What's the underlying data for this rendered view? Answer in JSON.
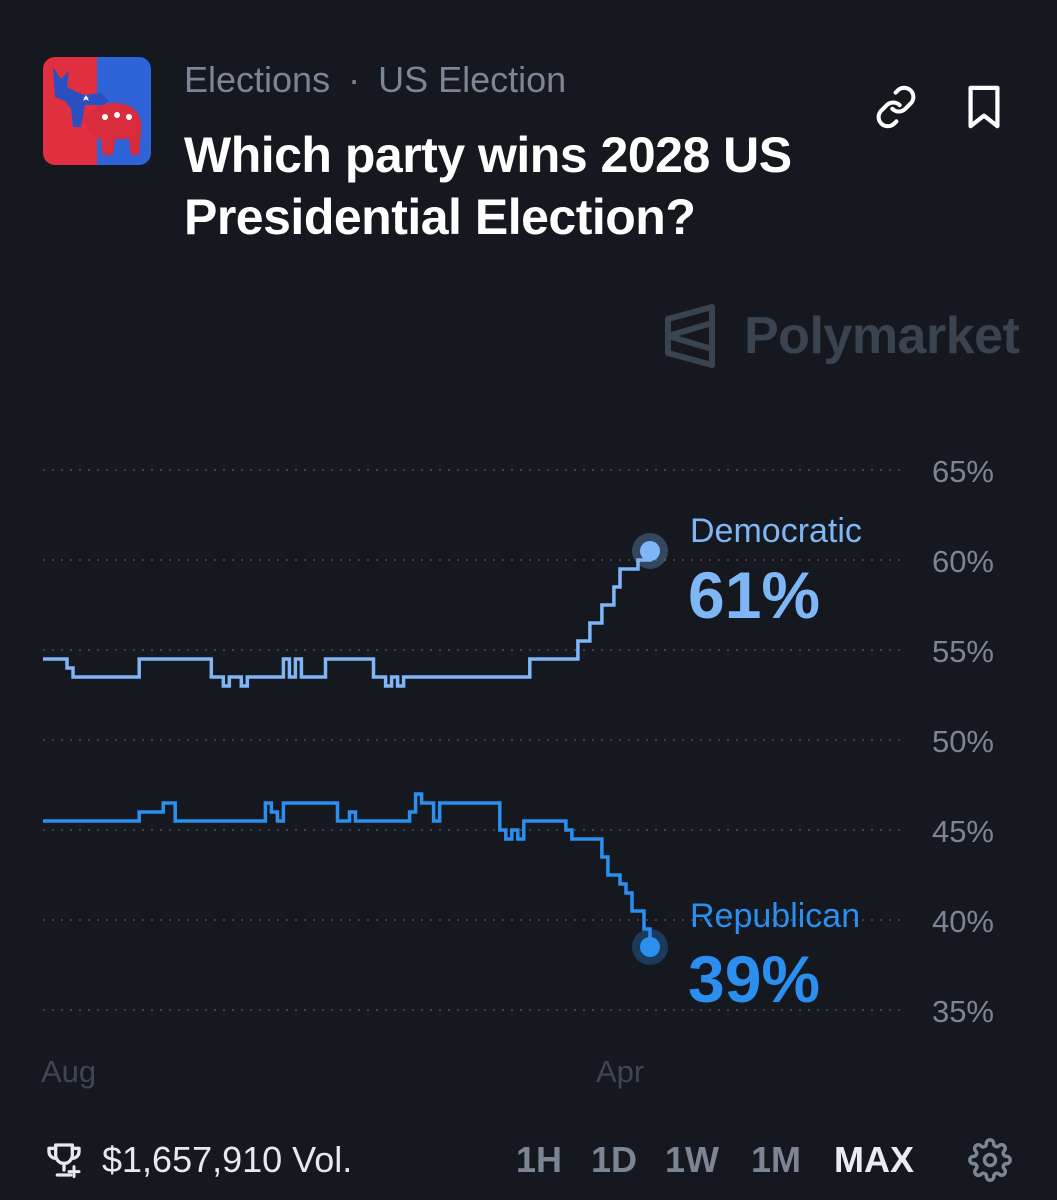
{
  "breadcrumb": {
    "category": "Elections",
    "separator": "·",
    "subcategory": "US Election"
  },
  "title": "Which party wins 2028 US Presidential Election?",
  "watermark": "Polymarket",
  "icons": {
    "market": "party-donkey-elephant-icon",
    "link": "link-icon",
    "bookmark": "bookmark-icon",
    "trophy": "trophy-icon",
    "settings": "gear-icon"
  },
  "colors": {
    "background": "#15181e",
    "democratic": "#7fb6f5",
    "republican": "#2b8ff0",
    "muted": "#7c8593"
  },
  "chart_data": {
    "type": "line",
    "x_labels": [
      "Aug",
      "Apr"
    ],
    "y_ticks": [
      "65%",
      "60%",
      "55%",
      "50%",
      "45%",
      "40%",
      "35%"
    ],
    "ylim": [
      35,
      65
    ],
    "grid": true,
    "legend": "end-labels",
    "series": [
      {
        "name": "Democratic",
        "current_label": "61%",
        "color": "#7fb6f5",
        "values": [
          54.5,
          54.5,
          54.5,
          54.5,
          54.0,
          53.5,
          53.5,
          53.5,
          53.5,
          53.5,
          53.5,
          53.5,
          53.5,
          53.5,
          53.5,
          53.5,
          54.5,
          54.5,
          54.5,
          54.5,
          54.5,
          54.5,
          54.5,
          54.5,
          54.5,
          54.5,
          54.5,
          54.5,
          53.5,
          53.5,
          53.0,
          53.5,
          53.5,
          53.0,
          53.5,
          53.5,
          53.5,
          53.5,
          53.5,
          53.5,
          54.5,
          53.5,
          54.5,
          53.5,
          53.5,
          53.5,
          53.5,
          54.5,
          54.5,
          54.5,
          54.5,
          54.5,
          54.5,
          54.5,
          54.5,
          53.5,
          53.5,
          53.0,
          53.5,
          53.0,
          53.5,
          53.5,
          53.5,
          53.5,
          53.5,
          53.5,
          53.5,
          53.5,
          53.5,
          53.5,
          53.5,
          53.5,
          53.5,
          53.5,
          53.5,
          53.5,
          53.5,
          53.5,
          53.5,
          53.5,
          53.5,
          54.5,
          54.5,
          54.5,
          54.5,
          54.5,
          54.5,
          54.5,
          54.5,
          55.5,
          55.5,
          56.5,
          56.5,
          57.5,
          57.5,
          58.5,
          59.5,
          59.5,
          59.5,
          60.0,
          60.0,
          60.5
        ]
      },
      {
        "name": "Republican",
        "current_label": "39%",
        "color": "#2b8ff0",
        "values": [
          45.5,
          45.5,
          45.5,
          45.5,
          45.5,
          45.5,
          45.5,
          45.5,
          45.5,
          45.5,
          45.5,
          45.5,
          45.5,
          45.5,
          45.5,
          45.5,
          46.0,
          46.0,
          46.0,
          46.0,
          46.5,
          46.5,
          45.5,
          45.5,
          45.5,
          45.5,
          45.5,
          45.5,
          45.5,
          45.5,
          45.5,
          45.5,
          45.5,
          45.5,
          45.5,
          45.5,
          45.5,
          46.5,
          46.0,
          45.5,
          46.5,
          46.5,
          46.5,
          46.5,
          46.5,
          46.5,
          46.5,
          46.5,
          46.5,
          45.5,
          45.5,
          46.0,
          45.5,
          45.5,
          45.5,
          45.5,
          45.5,
          45.5,
          45.5,
          45.5,
          45.5,
          46.0,
          47.0,
          46.5,
          46.5,
          45.5,
          46.5,
          46.5,
          46.5,
          46.5,
          46.5,
          46.5,
          46.5,
          46.5,
          46.5,
          46.5,
          45.0,
          44.5,
          45.0,
          44.5,
          45.5,
          45.5,
          45.5,
          45.5,
          45.5,
          45.5,
          45.5,
          45.0,
          44.5,
          44.5,
          44.5,
          44.5,
          44.5,
          43.5,
          42.5,
          42.5,
          42.0,
          41.5,
          40.5,
          40.5,
          39.5,
          38.5
        ]
      }
    ]
  },
  "footer": {
    "volume": "$1,657,910 Vol.",
    "ranges": [
      "1H",
      "1D",
      "1W",
      "1M",
      "MAX"
    ],
    "active_range": "MAX"
  }
}
